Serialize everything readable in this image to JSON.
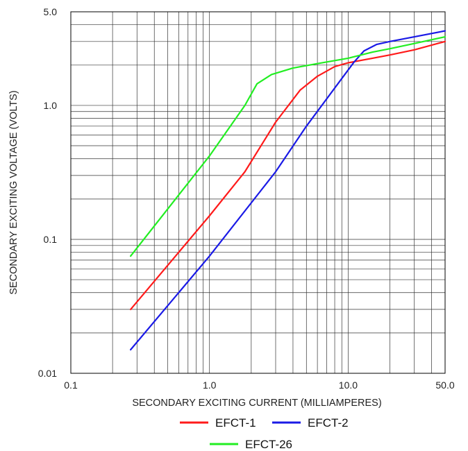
{
  "chart_data": {
    "type": "line",
    "xlabel": "SECONDARY EXCITING CURRENT (MILLIAMPERES)",
    "ylabel": "SECONDARY EXCITING VOLTAGE (VOLTS)",
    "xscale": "log",
    "yscale": "log",
    "xlim": [
      0.1,
      50
    ],
    "ylim": [
      0.01,
      5
    ],
    "grid": true,
    "legend_position": "bottom",
    "x_ticks": [
      {
        "value": 0.1,
        "label": "0.1"
      },
      {
        "value": 1,
        "label": "1.0"
      },
      {
        "value": 10,
        "label": "10.0"
      },
      {
        "value": 50,
        "label": "50.0"
      }
    ],
    "y_ticks": [
      {
        "value": 0.01,
        "label": "0.01"
      },
      {
        "value": 0.1,
        "label": "0.1"
      },
      {
        "value": 1,
        "label": "1.0"
      },
      {
        "value": 5,
        "label": "5.0"
      }
    ],
    "series": [
      {
        "name": "EFCT-1",
        "color": "#ff1a1a",
        "x": [
          0.27,
          1,
          1.8,
          3,
          4.5,
          6,
          8,
          10,
          15,
          20,
          30,
          50
        ],
        "y": [
          0.03,
          0.15,
          0.32,
          0.75,
          1.3,
          1.65,
          1.95,
          2.08,
          2.25,
          2.38,
          2.6,
          3.0
        ]
      },
      {
        "name": "EFCT-2",
        "color": "#1a1ae6",
        "x": [
          0.27,
          1,
          3,
          5,
          8,
          11,
          13,
          16,
          20,
          30,
          50
        ],
        "y": [
          0.015,
          0.075,
          0.32,
          0.7,
          1.35,
          2.1,
          2.55,
          2.85,
          3.0,
          3.25,
          3.6
        ]
      },
      {
        "name": "EFCT-26",
        "color": "#22ee22",
        "x": [
          0.27,
          1,
          1.8,
          2.2,
          2.8,
          4,
          6,
          10,
          15,
          20,
          30,
          50
        ],
        "y": [
          0.075,
          0.42,
          1.0,
          1.45,
          1.7,
          1.9,
          2.05,
          2.25,
          2.5,
          2.65,
          2.9,
          3.25
        ]
      }
    ]
  }
}
